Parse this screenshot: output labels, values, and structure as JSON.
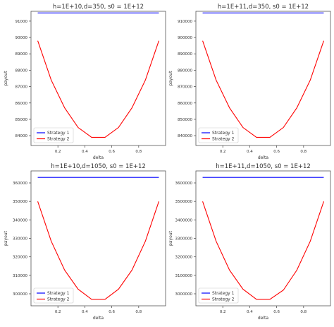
{
  "chart_data": [
    {
      "type": "line",
      "title": "h=1E+10,d=350, s0 = 1E+12",
      "xlabel": "delta",
      "ylabel": "payout",
      "xlim": [
        0.0,
        1.0
      ],
      "ylim": [
        83400,
        91600
      ],
      "x_ticks": [
        0.2,
        0.4,
        0.6,
        0.8
      ],
      "x_tick_labels": [
        "0.2",
        "0.4",
        "0.6",
        "0.8"
      ],
      "y_ticks": [
        84000,
        85000,
        86000,
        87000,
        88000,
        89000,
        90000,
        91000
      ],
      "y_tick_labels": [
        "84000",
        "85000",
        "86000",
        "87000",
        "88000",
        "89000",
        "90000",
        "91000"
      ],
      "legend_position": "lower-left",
      "x": [
        0.05,
        0.15,
        0.25,
        0.35,
        0.45,
        0.55,
        0.65,
        0.75,
        0.85,
        0.95
      ],
      "series": [
        {
          "name": "Strategy 1",
          "color": "#0000ff",
          "values": [
            91500,
            91500,
            91500,
            91500,
            91500,
            91500,
            91500,
            91500,
            91500,
            91500
          ]
        },
        {
          "name": "Strategy 2",
          "color": "#ff0000",
          "values": [
            89800,
            87400,
            85700,
            84500,
            83900,
            83900,
            84500,
            85700,
            87400,
            89800
          ]
        }
      ]
    },
    {
      "type": "line",
      "title": "h=1E+11,d=350, s0 = 1E+12",
      "xlabel": "delta",
      "ylabel": "payout",
      "xlim": [
        0.0,
        1.0
      ],
      "ylim": [
        834000,
        916000
      ],
      "x_ticks": [
        0.2,
        0.4,
        0.6,
        0.8
      ],
      "x_tick_labels": [
        "0.2",
        "0.4",
        "0.6",
        "0.8"
      ],
      "y_ticks": [
        840000,
        850000,
        860000,
        870000,
        880000,
        890000,
        900000,
        910000
      ],
      "y_tick_labels": [
        "840000",
        "850000",
        "860000",
        "870000",
        "880000",
        "890000",
        "900000",
        "910000"
      ],
      "legend_position": "lower-left",
      "x": [
        0.05,
        0.15,
        0.25,
        0.35,
        0.45,
        0.55,
        0.65,
        0.75,
        0.85,
        0.95
      ],
      "series": [
        {
          "name": "Strategy 1",
          "color": "#0000ff",
          "values": [
            915000,
            915000,
            915000,
            915000,
            915000,
            915000,
            915000,
            915000,
            915000,
            915000
          ]
        },
        {
          "name": "Strategy 2",
          "color": "#ff0000",
          "values": [
            898000,
            874000,
            857000,
            845000,
            839000,
            839000,
            845000,
            857000,
            874000,
            898000
          ]
        }
      ]
    },
    {
      "type": "line",
      "title": "h=1E+10,d=1050, s0 = 1E+12",
      "xlabel": "delta",
      "ylabel": "payout",
      "xlim": [
        0.0,
        1.0
      ],
      "ylim": [
        293500,
        366500
      ],
      "x_ticks": [
        0.2,
        0.4,
        0.6,
        0.8
      ],
      "x_tick_labels": [
        "0.2",
        "0.4",
        "0.6",
        "0.8"
      ],
      "y_ticks": [
        300000,
        310000,
        320000,
        330000,
        340000,
        350000,
        360000
      ],
      "y_tick_labels": [
        "300000",
        "310000",
        "320000",
        "330000",
        "340000",
        "350000",
        "360000"
      ],
      "legend_position": "lower-left",
      "x": [
        0.05,
        0.15,
        0.25,
        0.35,
        0.45,
        0.55,
        0.65,
        0.75,
        0.85,
        0.95
      ],
      "series": [
        {
          "name": "Strategy 1",
          "color": "#0000ff",
          "values": [
            363000,
            363000,
            363000,
            363000,
            363000,
            363000,
            363000,
            363000,
            363000,
            363000
          ]
        },
        {
          "name": "Strategy 2",
          "color": "#ff0000",
          "values": [
            350000,
            328500,
            312800,
            302500,
            297000,
            297000,
            302500,
            312800,
            328500,
            350000
          ]
        }
      ]
    },
    {
      "type": "line",
      "title": "h=1E+11,d=1050, s0 = 1E+12",
      "xlabel": "delta",
      "ylabel": "payout",
      "xlim": [
        0.0,
        1.0
      ],
      "ylim": [
        2935000,
        3665000
      ],
      "x_ticks": [
        0.2,
        0.4,
        0.6,
        0.8
      ],
      "x_tick_labels": [
        "0.2",
        "0.4",
        "0.6",
        "0.8"
      ],
      "y_ticks": [
        3000000,
        3100000,
        3200000,
        3300000,
        3400000,
        3500000,
        3600000
      ],
      "y_tick_labels": [
        "3000000",
        "3100000",
        "3200000",
        "3300000",
        "3400000",
        "3500000",
        "3600000"
      ],
      "legend_position": "lower-left",
      "x": [
        0.05,
        0.15,
        0.25,
        0.35,
        0.45,
        0.55,
        0.65,
        0.75,
        0.85,
        0.95
      ],
      "series": [
        {
          "name": "Strategy 1",
          "color": "#0000ff",
          "values": [
            3630000,
            3630000,
            3630000,
            3630000,
            3630000,
            3630000,
            3630000,
            3630000,
            3630000,
            3630000
          ]
        },
        {
          "name": "Strategy 2",
          "color": "#ff0000",
          "values": [
            3500000,
            3285000,
            3128000,
            3025000,
            2970000,
            2970000,
            3020000,
            3128000,
            3285000,
            3500000
          ]
        }
      ]
    }
  ]
}
